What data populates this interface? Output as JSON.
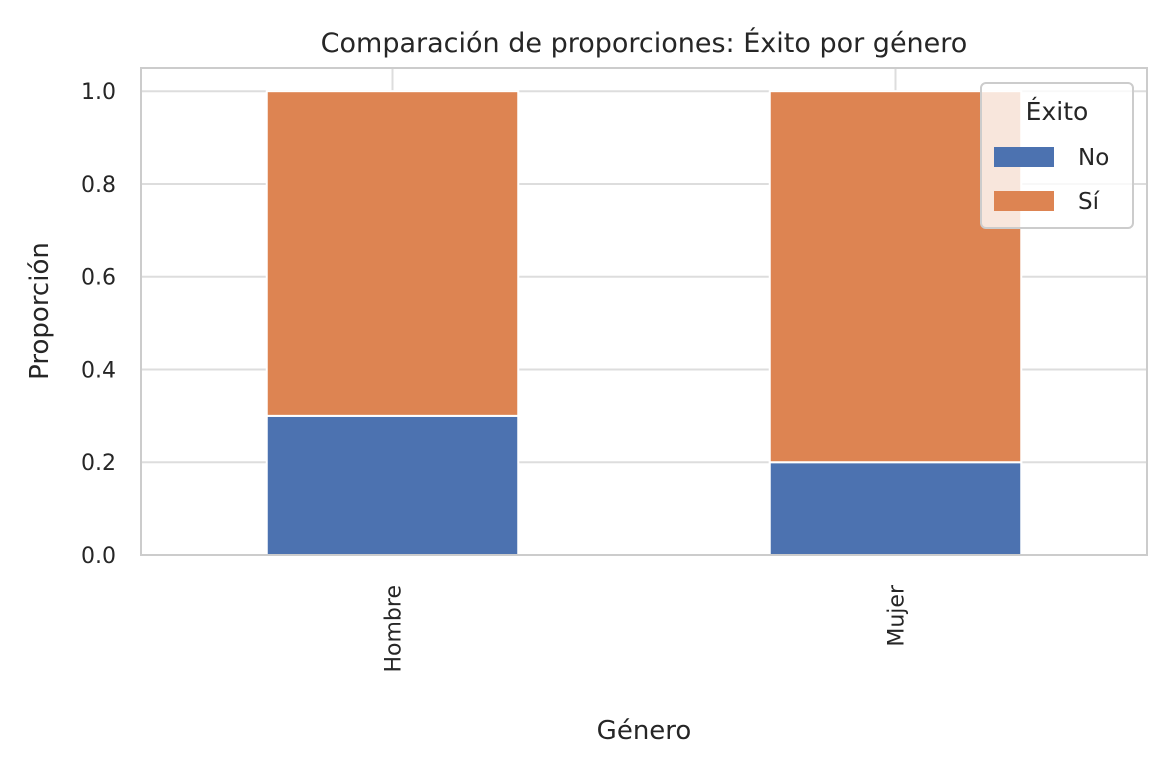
{
  "chart_data": {
    "type": "bar",
    "stacked": true,
    "title": "Comparación de proporciones: Éxito por género",
    "xlabel": "Género",
    "ylabel": "Proporción",
    "categories": [
      "Hombre",
      "Mujer"
    ],
    "series": [
      {
        "name": "No",
        "values": [
          0.3,
          0.2
        ],
        "color": "#4c72b0"
      },
      {
        "name": "Sí",
        "values": [
          0.7,
          0.8
        ],
        "color": "#dd8452"
      }
    ],
    "ylim": [
      0,
      1.05
    ],
    "yticks": [
      "0.0",
      "0.2",
      "0.4",
      "0.6",
      "0.8",
      "1.0"
    ],
    "grid": true,
    "legend": {
      "title": "Éxito",
      "placement": "top-right"
    }
  }
}
